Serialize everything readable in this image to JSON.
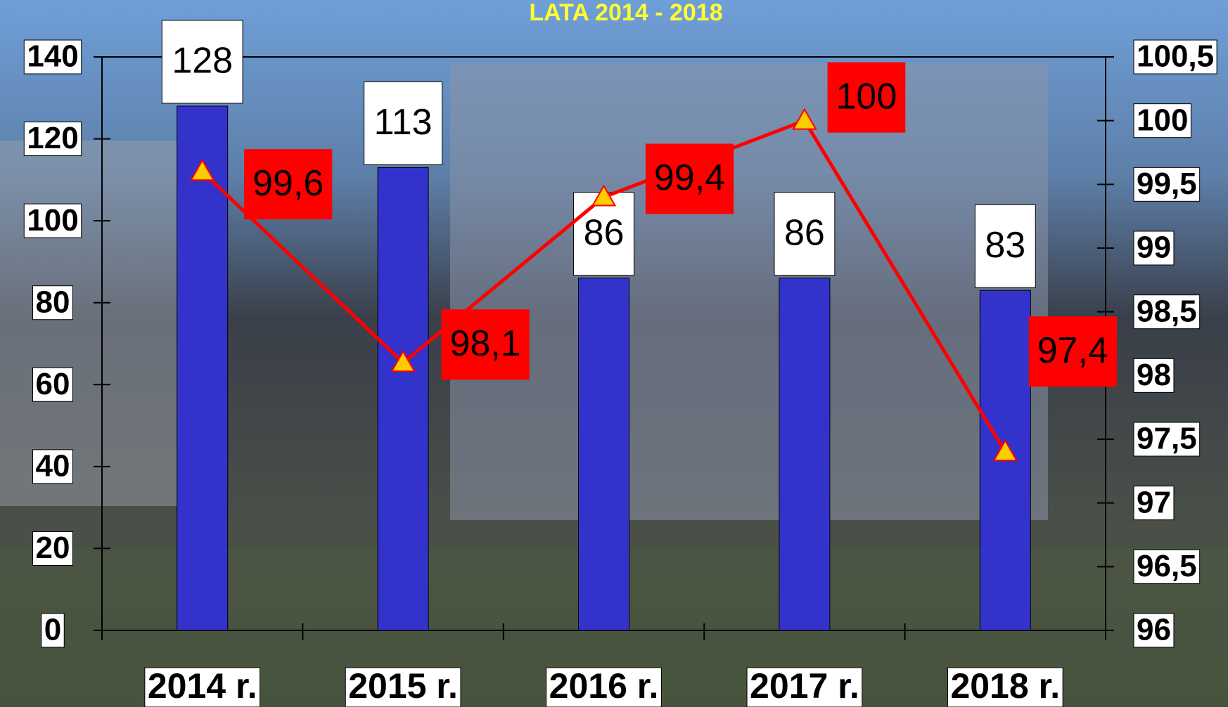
{
  "chart_data": {
    "type": "bar",
    "title": "LATA 2014 - 2018",
    "categories": [
      "2014 r.",
      "2015 r.",
      "2016 r.",
      "2017 r.",
      "2018 r."
    ],
    "series": [
      {
        "type": "bar",
        "color": "#3333cc",
        "values": [
          128,
          113,
          86,
          86,
          83
        ]
      },
      {
        "type": "line",
        "axis": "y2",
        "color": "#ff0000",
        "values": [
          99.6,
          98.1,
          99.4,
          100,
          97.4
        ],
        "value_labels": [
          "99,6",
          "98,1",
          "99,4",
          "100",
          "97,4"
        ]
      }
    ],
    "ylim": [
      0,
      140
    ],
    "yticks": [
      0,
      20,
      40,
      60,
      80,
      100,
      120,
      140
    ],
    "y2lim": [
      96,
      100.5
    ],
    "y2ticks": [
      96,
      {
        "value": 96.5,
        "label": "96,5"
      },
      97,
      {
        "value": 97.5,
        "label": "97,5"
      },
      98,
      {
        "value": 98.5,
        "label": "98,5"
      },
      99,
      {
        "value": 99.5,
        "label": "99,5"
      },
      100,
      {
        "value": 100.5,
        "label": "100,5"
      }
    ]
  }
}
